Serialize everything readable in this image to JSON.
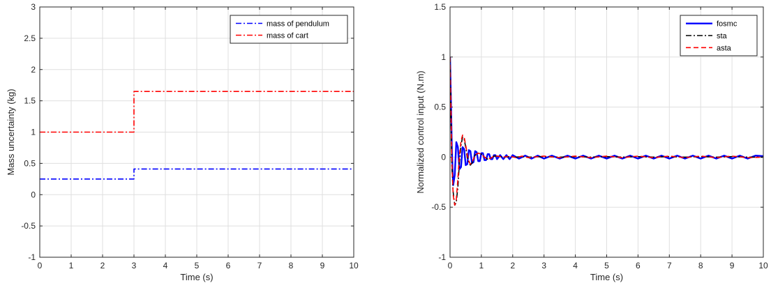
{
  "chart_data": [
    {
      "type": "line",
      "xlabel": "Time (s)",
      "ylabel": "Mass uncertainty (kg)",
      "xlim": [
        0,
        10
      ],
      "ylim": [
        -1,
        3
      ],
      "xticks": [
        0,
        1,
        2,
        3,
        4,
        5,
        6,
        7,
        8,
        9,
        10
      ],
      "yticks": [
        -1,
        -0.5,
        0,
        0.5,
        1,
        1.5,
        2,
        2.5,
        3
      ],
      "grid": true,
      "legend_position": "top-right",
      "series": [
        {
          "name": "mass of pendulum",
          "color": "#0000ff",
          "style": "dash-dot",
          "x": [
            0,
            3,
            3,
            10
          ],
          "y": [
            0.25,
            0.25,
            0.41,
            0.41
          ]
        },
        {
          "name": "mass of cart",
          "color": "#ff0000",
          "style": "dash-dot",
          "x": [
            0,
            3,
            3,
            10
          ],
          "y": [
            1.0,
            1.0,
            1.65,
            1.65
          ]
        }
      ]
    },
    {
      "type": "line",
      "xlabel": "Time (s)",
      "ylabel": "Normalized control input (N.m)",
      "xlim": [
        0,
        10
      ],
      "ylim": [
        -1,
        1.5
      ],
      "xticks": [
        0,
        1,
        2,
        3,
        4,
        5,
        6,
        7,
        8,
        9,
        10
      ],
      "yticks": [
        -1,
        -0.5,
        0,
        0.5,
        1,
        1.5
      ],
      "grid": true,
      "legend_position": "top-right",
      "series": [
        {
          "name": "fosmc",
          "color": "#0000ff",
          "style": "solid",
          "x": [
            0,
            0.03,
            0.06,
            0.1,
            0.15,
            0.2,
            0.25,
            0.3,
            0.35,
            0.4,
            0.45,
            0.5,
            0.55,
            0.6,
            0.65,
            0.7,
            0.75,
            0.8,
            0.85,
            0.9,
            0.95,
            1.0,
            1.05,
            1.1,
            1.15,
            1.2,
            1.25,
            1.3,
            1.35,
            1.4,
            1.45,
            1.5,
            1.6,
            1.7,
            1.8,
            1.9,
            2.0,
            2.2,
            2.4,
            2.6,
            2.8,
            3.0,
            3.25,
            3.5,
            3.75,
            4.0,
            4.25,
            4.5,
            4.75,
            5.0,
            5.25,
            5.5,
            5.75,
            6.0,
            6.25,
            6.5,
            6.75,
            7.0,
            7.25,
            7.5,
            7.75,
            8.0,
            8.25,
            8.5,
            8.75,
            9.0,
            9.25,
            9.5,
            9.75,
            10.0
          ],
          "y": [
            1.0,
            0.55,
            0.05,
            -0.28,
            -0.18,
            0.15,
            0.1,
            -0.12,
            -0.1,
            0.1,
            0.08,
            -0.08,
            -0.07,
            0.07,
            0.06,
            -0.06,
            -0.05,
            0.06,
            0.05,
            -0.04,
            -0.04,
            0.04,
            0.04,
            -0.03,
            -0.03,
            0.03,
            0.03,
            -0.02,
            -0.02,
            0.02,
            0.02,
            -0.02,
            0.02,
            -0.02,
            0.02,
            -0.02,
            0.02,
            -0.015,
            0.015,
            -0.015,
            0.015,
            -0.015,
            0.015,
            -0.015,
            0.015,
            -0.015,
            0.015,
            -0.015,
            0.015,
            -0.015,
            0.015,
            -0.015,
            0.015,
            -0.015,
            0.015,
            -0.015,
            0.015,
            -0.015,
            0.015,
            -0.015,
            0.015,
            -0.015,
            0.015,
            -0.015,
            0.015,
            -0.015,
            0.015,
            -0.015,
            0.015,
            0.01
          ]
        },
        {
          "name": "sta",
          "color": "#000000",
          "style": "dash-dot",
          "x": [
            0,
            0.03,
            0.06,
            0.1,
            0.15,
            0.2,
            0.25,
            0.3,
            0.35,
            0.4,
            0.45,
            0.5,
            0.55,
            0.6,
            0.65,
            0.7,
            0.75,
            0.8,
            0.9,
            1.0,
            1.1,
            1.2,
            1.3,
            1.4,
            1.5,
            1.7,
            1.9,
            2.1,
            2.3,
            2.5,
            3.0,
            3.5,
            4.0,
            4.5,
            5.0,
            5.5,
            6.0,
            6.5,
            7.0,
            7.5,
            8.0,
            8.5,
            9.0,
            9.5,
            10.0
          ],
          "y": [
            1.0,
            0.4,
            -0.1,
            -0.35,
            -0.48,
            -0.45,
            -0.3,
            -0.05,
            0.12,
            0.2,
            0.18,
            0.1,
            0.0,
            -0.06,
            -0.08,
            -0.06,
            -0.02,
            0.02,
            0.04,
            0.03,
            0.0,
            -0.02,
            -0.01,
            0.01,
            0.01,
            0.0,
            0.005,
            0.0,
            0.005,
            0.0,
            0.005,
            0.0,
            0.005,
            0.0,
            0.005,
            0.0,
            0.005,
            0.0,
            0.005,
            0.0,
            0.005,
            0.0,
            0.005,
            0.0,
            0.0
          ]
        },
        {
          "name": "asta",
          "color": "#ff0000",
          "style": "dashed",
          "x": [
            0,
            0.03,
            0.06,
            0.1,
            0.15,
            0.2,
            0.25,
            0.3,
            0.35,
            0.4,
            0.45,
            0.5,
            0.55,
            0.6,
            0.65,
            0.7,
            0.75,
            0.8,
            0.9,
            1.0,
            1.1,
            1.2,
            1.3,
            1.4,
            1.5,
            1.7,
            1.9,
            2.1,
            2.3,
            2.5,
            3.0,
            3.5,
            4.0,
            4.5,
            5.0,
            5.5,
            6.0,
            6.5,
            7.0,
            7.5,
            8.0,
            8.5,
            9.0,
            9.5,
            10.0
          ],
          "y": [
            1.0,
            0.5,
            -0.05,
            -0.38,
            -0.48,
            -0.42,
            -0.22,
            0.02,
            0.16,
            0.22,
            0.2,
            0.12,
            0.03,
            -0.04,
            -0.07,
            -0.05,
            -0.02,
            0.02,
            0.04,
            0.03,
            0.0,
            -0.02,
            -0.01,
            0.01,
            0.01,
            0.0,
            0.01,
            -0.005,
            0.01,
            -0.005,
            0.01,
            -0.005,
            0.01,
            -0.005,
            0.01,
            -0.005,
            0.01,
            -0.005,
            0.01,
            -0.005,
            0.01,
            -0.005,
            0.01,
            -0.005,
            0.0
          ]
        }
      ]
    }
  ]
}
